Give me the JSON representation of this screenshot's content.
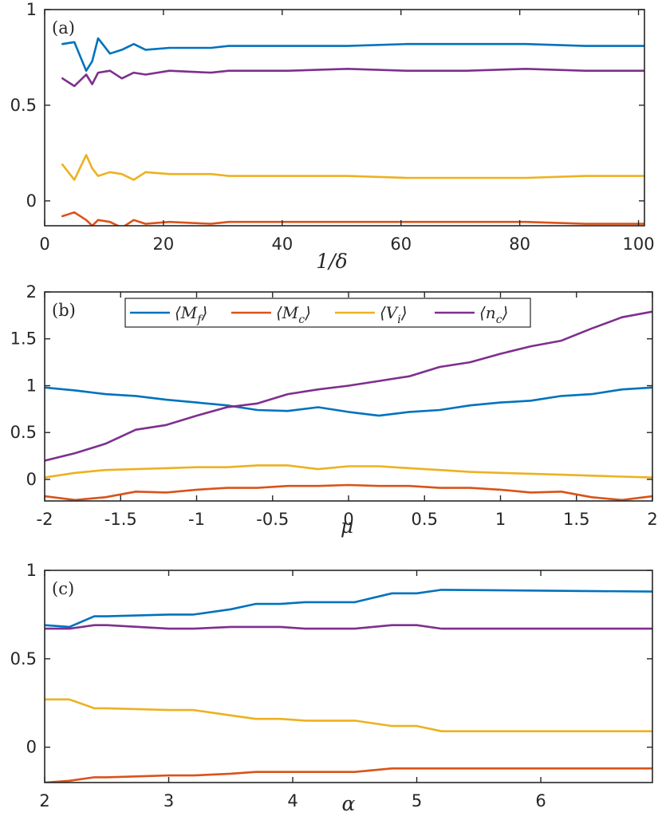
{
  "colors": {
    "Mf": "#0072BD",
    "Mc": "#D95319",
    "Vi": "#EDB120",
    "nc": "#7E2F8E",
    "axis": "#262626"
  },
  "chart_data": [
    {
      "type": "line",
      "panel_label": "(a)",
      "xlabel": "1/δ",
      "xlim": [
        0,
        101
      ],
      "ylim": [
        -0.13,
        1
      ],
      "xticks": [
        0,
        20,
        40,
        60,
        80,
        100
      ],
      "xtick_labels": [
        "0",
        "20",
        "40",
        "60",
        "80",
        "100"
      ],
      "yticks": [
        0,
        0.5,
        1
      ],
      "ytick_labels": [
        "0",
        "0.5",
        "1"
      ],
      "x": [
        3,
        5,
        7,
        8,
        9,
        11,
        13,
        15,
        17,
        21,
        28,
        31,
        41,
        51,
        61,
        71,
        81,
        91,
        101
      ],
      "series": [
        {
          "name": "⟨Mf⟩",
          "color_key": "Mf",
          "values": [
            0.82,
            0.83,
            0.68,
            0.73,
            0.85,
            0.77,
            0.79,
            0.82,
            0.79,
            0.8,
            0.8,
            0.81,
            0.81,
            0.81,
            0.82,
            0.82,
            0.82,
            0.81,
            0.81
          ]
        },
        {
          "name": "⟨Mc⟩",
          "color_key": "Mc",
          "values": [
            -0.08,
            -0.06,
            -0.1,
            -0.13,
            -0.1,
            -0.11,
            -0.14,
            -0.1,
            -0.12,
            -0.11,
            -0.12,
            -0.11,
            -0.11,
            -0.11,
            -0.11,
            -0.11,
            -0.11,
            -0.12,
            -0.12
          ]
        },
        {
          "name": "⟨Vi⟩",
          "color_key": "Vi",
          "values": [
            0.19,
            0.11,
            0.24,
            0.17,
            0.13,
            0.15,
            0.14,
            0.11,
            0.15,
            0.14,
            0.14,
            0.13,
            0.13,
            0.13,
            0.12,
            0.12,
            0.12,
            0.13,
            0.13
          ]
        },
        {
          "name": "⟨nc⟩",
          "color_key": "nc",
          "values": [
            0.64,
            0.6,
            0.66,
            0.61,
            0.67,
            0.68,
            0.64,
            0.67,
            0.66,
            0.68,
            0.67,
            0.68,
            0.68,
            0.69,
            0.68,
            0.68,
            0.69,
            0.68,
            0.68
          ]
        }
      ]
    },
    {
      "type": "line",
      "panel_label": "(b)",
      "xlabel": "μ",
      "xlim": [
        -2,
        2
      ],
      "ylim": [
        -0.23,
        2
      ],
      "xticks": [
        -2,
        -1.5,
        -1,
        -0.5,
        0,
        0.5,
        1,
        1.5,
        2
      ],
      "xtick_labels": [
        "-2",
        "-1.5",
        "-1",
        "-0.5",
        "0",
        "0.5",
        "1",
        "1.5",
        "2"
      ],
      "yticks": [
        0,
        0.5,
        1,
        1.5,
        2
      ],
      "ytick_labels": [
        "0",
        "0.5",
        "1",
        "1.5",
        "2"
      ],
      "legend": [
        "⟨M",
        "⟩",
        "⟨M",
        "⟩",
        "⟨V",
        "⟩",
        "⟨n",
        "⟩"
      ],
      "legend_subscripts": [
        "f",
        "c",
        "i",
        "c"
      ],
      "x": [
        -2,
        -1.8,
        -1.6,
        -1.4,
        -1.2,
        -1,
        -0.8,
        -0.6,
        -0.4,
        -0.2,
        0,
        0.2,
        0.4,
        0.6,
        0.8,
        1,
        1.2,
        1.4,
        1.6,
        1.8,
        2
      ],
      "series": [
        {
          "name": "⟨Mf⟩",
          "color_key": "Mf",
          "values": [
            0.98,
            0.95,
            0.91,
            0.89,
            0.85,
            0.82,
            0.79,
            0.74,
            0.73,
            0.77,
            0.72,
            0.68,
            0.72,
            0.74,
            0.79,
            0.82,
            0.84,
            0.89,
            0.91,
            0.96,
            0.98
          ]
        },
        {
          "name": "⟨Mc⟩",
          "color_key": "Mc",
          "values": [
            -0.18,
            -0.22,
            -0.19,
            -0.13,
            -0.14,
            -0.11,
            -0.09,
            -0.09,
            -0.07,
            -0.07,
            -0.06,
            -0.07,
            -0.07,
            -0.09,
            -0.09,
            -0.11,
            -0.14,
            -0.13,
            -0.19,
            -0.22,
            -0.18
          ]
        },
        {
          "name": "⟨Vi⟩",
          "color_key": "Vi",
          "values": [
            0.02,
            0.07,
            0.1,
            0.11,
            0.12,
            0.13,
            0.13,
            0.15,
            0.15,
            0.11,
            0.14,
            0.14,
            0.12,
            0.1,
            0.08,
            0.07,
            0.06,
            0.05,
            0.04,
            0.03,
            0.02
          ]
        },
        {
          "name": "⟨nc⟩",
          "color_key": "nc",
          "values": [
            0.2,
            0.28,
            0.38,
            0.53,
            0.58,
            0.68,
            0.77,
            0.81,
            0.91,
            0.96,
            1.0,
            1.05,
            1.1,
            1.2,
            1.25,
            1.34,
            1.42,
            1.48,
            1.61,
            1.73,
            1.79
          ]
        }
      ]
    },
    {
      "type": "line",
      "panel_label": "(c)",
      "xlabel": "α",
      "xlim": [
        2,
        6.9
      ],
      "ylim": [
        -0.2,
        1
      ],
      "xticks": [
        2,
        3,
        4,
        5,
        6
      ],
      "xtick_labels": [
        "2",
        "3",
        "4",
        "5",
        "6"
      ],
      "yticks": [
        0,
        0.5,
        1
      ],
      "ytick_labels": [
        "0",
        "0.5",
        "1"
      ],
      "x": [
        2,
        2.2,
        2.4,
        2.5,
        3,
        3.2,
        3.5,
        3.7,
        3.9,
        4.1,
        4.5,
        4.8,
        5,
        5.2,
        6.9
      ],
      "series": [
        {
          "name": "⟨Mf⟩",
          "color_key": "Mf",
          "values": [
            0.69,
            0.68,
            0.74,
            0.74,
            0.75,
            0.75,
            0.78,
            0.81,
            0.81,
            0.82,
            0.82,
            0.87,
            0.87,
            0.89,
            0.88
          ]
        },
        {
          "name": "⟨Mc⟩",
          "color_key": "Mc",
          "values": [
            -0.2,
            -0.19,
            -0.17,
            -0.17,
            -0.16,
            -0.16,
            -0.15,
            -0.14,
            -0.14,
            -0.14,
            -0.14,
            -0.12,
            -0.12,
            -0.12,
            -0.12
          ]
        },
        {
          "name": "⟨Vi⟩",
          "color_key": "Vi",
          "values": [
            0.27,
            0.27,
            0.22,
            0.22,
            0.21,
            0.21,
            0.18,
            0.16,
            0.16,
            0.15,
            0.15,
            0.12,
            0.12,
            0.09,
            0.09
          ]
        },
        {
          "name": "⟨nc⟩",
          "color_key": "nc",
          "values": [
            0.67,
            0.67,
            0.69,
            0.69,
            0.67,
            0.67,
            0.68,
            0.68,
            0.68,
            0.67,
            0.67,
            0.69,
            0.69,
            0.67,
            0.67
          ]
        }
      ]
    }
  ]
}
